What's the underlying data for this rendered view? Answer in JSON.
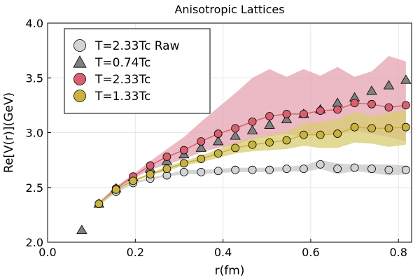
{
  "chart_data": {
    "type": "scatter",
    "title": "Anisotropic Lattices",
    "xlabel": "r(fm)",
    "ylabel": "Re[V(r)](GeV)",
    "xlim": [
      0.0,
      0.83
    ],
    "ylim": [
      2.0,
      4.0
    ],
    "xticks": [
      "0.0",
      "0.2",
      "0.4",
      "0.6",
      "0.8"
    ],
    "xtick_values": [
      0.0,
      0.2,
      0.4,
      0.6,
      0.8
    ],
    "yticks": [
      "2.0",
      "2.5",
      "3.0",
      "3.5",
      "4.0"
    ],
    "ytick_values": [
      2.0,
      2.5,
      3.0,
      3.5,
      4.0
    ],
    "grid": true,
    "legend_position": "top-left",
    "series": [
      {
        "name": "T=2.33Tc Raw",
        "marker": "circle",
        "color": "#d3d3d3",
        "band_color": "#c8c8c8",
        "x": [
          0.117,
          0.156,
          0.195,
          0.234,
          0.272,
          0.311,
          0.35,
          0.389,
          0.428,
          0.467,
          0.506,
          0.545,
          0.584,
          0.622,
          0.661,
          0.7,
          0.739,
          0.778,
          0.817
        ],
        "y": [
          2.35,
          2.46,
          2.54,
          2.58,
          2.61,
          2.64,
          2.64,
          2.65,
          2.66,
          2.66,
          2.66,
          2.67,
          2.67,
          2.71,
          2.67,
          2.68,
          2.67,
          2.66,
          2.66
        ],
        "band_lo": [
          2.34,
          2.45,
          2.53,
          2.57,
          2.6,
          2.62,
          2.62,
          2.63,
          2.64,
          2.64,
          2.64,
          2.65,
          2.64,
          2.67,
          2.62,
          2.65,
          2.63,
          2.61,
          2.62
        ],
        "band_hi": [
          2.36,
          2.47,
          2.55,
          2.59,
          2.62,
          2.66,
          2.66,
          2.67,
          2.68,
          2.68,
          2.68,
          2.69,
          2.7,
          2.75,
          2.72,
          2.71,
          2.71,
          2.71,
          2.7
        ]
      },
      {
        "name": "T=0.74Tc",
        "marker": "triangle",
        "color": "#808080",
        "x": [
          0.078,
          0.117,
          0.156,
          0.195,
          0.234,
          0.272,
          0.311,
          0.35,
          0.389,
          0.428,
          0.467,
          0.506,
          0.545,
          0.584,
          0.622,
          0.661,
          0.7,
          0.739,
          0.778,
          0.817
        ],
        "y": [
          2.11,
          2.35,
          2.49,
          2.59,
          2.67,
          2.74,
          2.8,
          2.86,
          2.92,
          2.97,
          3.02,
          3.07,
          3.12,
          3.17,
          3.21,
          3.27,
          3.32,
          3.38,
          3.43,
          3.48
        ]
      },
      {
        "name": "T=2.33Tc",
        "marker": "circle",
        "color": "#d9606f",
        "band_color": "#e4a3b0",
        "x": [
          0.117,
          0.156,
          0.195,
          0.234,
          0.272,
          0.311,
          0.35,
          0.389,
          0.428,
          0.467,
          0.506,
          0.545,
          0.584,
          0.622,
          0.661,
          0.7,
          0.739,
          0.778,
          0.817
        ],
        "y": [
          2.35,
          2.49,
          2.6,
          2.7,
          2.78,
          2.84,
          2.92,
          2.99,
          3.04,
          3.1,
          3.15,
          3.17,
          3.17,
          3.2,
          3.21,
          3.27,
          3.26,
          3.23,
          3.25
        ],
        "band_lo": [
          2.33,
          2.47,
          2.58,
          2.66,
          2.71,
          2.76,
          2.82,
          2.86,
          2.89,
          2.94,
          2.97,
          2.99,
          2.96,
          3.0,
          2.98,
          3.02,
          2.99,
          2.96,
          2.92
        ],
        "band_hi": [
          2.37,
          2.51,
          2.62,
          2.74,
          2.85,
          2.96,
          3.1,
          3.23,
          3.36,
          3.5,
          3.58,
          3.51,
          3.58,
          3.52,
          3.6,
          3.51,
          3.56,
          3.7,
          3.65
        ]
      },
      {
        "name": "T=1.33Tc",
        "marker": "circle",
        "color": "#c8b33f",
        "band_color": "#d8cc70",
        "x": [
          0.117,
          0.156,
          0.195,
          0.234,
          0.272,
          0.311,
          0.35,
          0.389,
          0.428,
          0.467,
          0.506,
          0.545,
          0.584,
          0.622,
          0.661,
          0.7,
          0.739,
          0.778,
          0.817
        ],
        "y": [
          2.35,
          2.48,
          2.56,
          2.62,
          2.67,
          2.72,
          2.76,
          2.81,
          2.86,
          2.89,
          2.91,
          2.93,
          2.98,
          2.98,
          2.99,
          3.05,
          3.04,
          3.04,
          3.05
        ],
        "band_lo": [
          2.34,
          2.47,
          2.55,
          2.61,
          2.65,
          2.7,
          2.73,
          2.77,
          2.81,
          2.83,
          2.84,
          2.85,
          2.88,
          2.86,
          2.86,
          2.91,
          2.9,
          2.87,
          2.89
        ],
        "band_hi": [
          2.36,
          2.49,
          2.57,
          2.63,
          2.69,
          2.74,
          2.79,
          2.85,
          2.91,
          2.95,
          2.98,
          3.01,
          3.08,
          3.1,
          3.12,
          3.19,
          3.15,
          3.18,
          3.21
        ]
      }
    ]
  }
}
